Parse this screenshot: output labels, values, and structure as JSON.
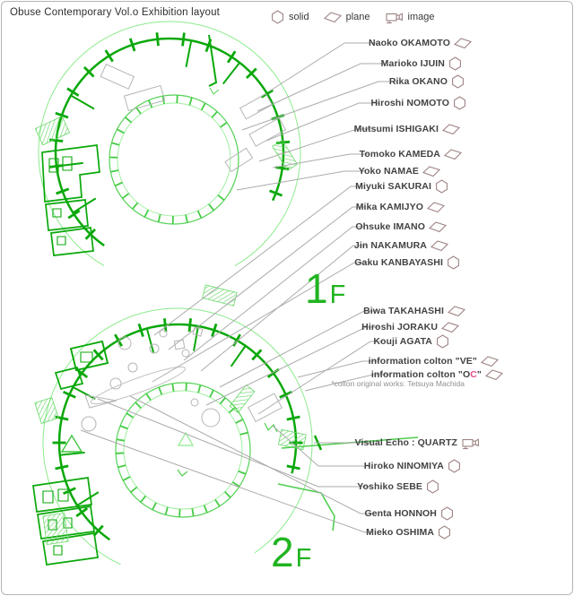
{
  "title": "Obuse Contemporary Vol.o Exhibition layout",
  "legend": {
    "items": [
      {
        "label": "solid",
        "marker": "solid"
      },
      {
        "label": "plane",
        "marker": "plane"
      },
      {
        "label": "image",
        "marker": "image"
      }
    ]
  },
  "floors": [
    {
      "label": "1F"
    },
    {
      "label": "2F"
    }
  ],
  "artists": [
    {
      "name": "Naoko OKAMOTO",
      "marker": "plane"
    },
    {
      "name": "Marioko IJUIN",
      "marker": "solid"
    },
    {
      "name": "Rika OKANO",
      "marker": "solid"
    },
    {
      "name": "Hiroshi NOMOTO",
      "marker": "solid"
    },
    {
      "name": "Mutsumi ISHIGAKI",
      "marker": "plane"
    },
    {
      "name": "Tomoko KAMEDA",
      "marker": "plane"
    },
    {
      "name": "Yoko NAMAE",
      "marker": "plane"
    },
    {
      "name": "Miyuki SAKURAI",
      "marker": "solid"
    },
    {
      "name": "Mika KAMIJYO",
      "marker": "plane"
    },
    {
      "name": "Ohsuke IMANO",
      "marker": "plane"
    },
    {
      "name": "Jin NAKAMURA",
      "marker": "plane"
    },
    {
      "name": "Gaku KANBAYASHI",
      "marker": "solid"
    },
    {
      "name": "Biwa TAKAHASHI",
      "marker": "plane"
    },
    {
      "name": "Hiroshi JORAKU",
      "marker": "plane"
    },
    {
      "name": "Kouji AGATA",
      "marker": "solid"
    },
    {
      "name": "information colton \"VE\"",
      "marker": "plane"
    },
    {
      "name": "information colton \"OC\"",
      "marker": "plane",
      "pink_char": "C"
    },
    {
      "name": "Visual Echo : QUARTZ",
      "marker": "image"
    },
    {
      "name": "Hiroko NINOMIYA",
      "marker": "solid"
    },
    {
      "name": "Yoshiko SEBE",
      "marker": "solid"
    },
    {
      "name": "Genta HONNOH",
      "marker": "solid"
    },
    {
      "name": "Mieko OSHIMA",
      "marker": "solid"
    }
  ],
  "footnote": "*colton original works: Tetsuya Machida",
  "colors": {
    "plan_green": "#0aa80a",
    "plan_green_light": "#54d254",
    "plan_green_pale": "#8ceb8c",
    "marker_outline": "#9d8383",
    "highlight_pink": "#e8488a",
    "leader_gray": "#ababab",
    "exhibit_gray": "#b5b5b5",
    "floor_label_green": "#21b421",
    "text": "#424242"
  }
}
